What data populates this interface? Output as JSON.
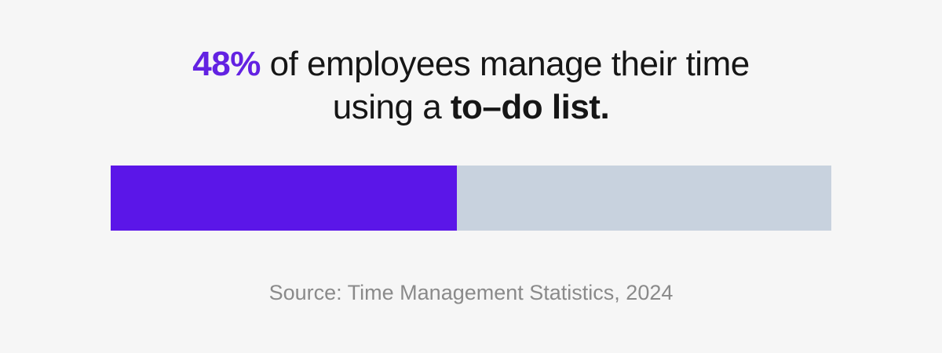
{
  "headline": {
    "percent": "48%",
    "line1_rest": " of employees manage their time",
    "line2_regular": "using a ",
    "line2_bold": "to–do list."
  },
  "source": "Source: Time Management Statistics, 2024",
  "chart_data": {
    "type": "bar",
    "categories": [
      "Employees who manage their time using a to–do list"
    ],
    "values": [
      48
    ],
    "value": 48,
    "unit": "%",
    "xlim": [
      0,
      100
    ],
    "title": "48% of employees manage their time using a to–do list.",
    "xlabel": "",
    "ylabel": "",
    "legend": "off",
    "grid": "off",
    "annotations": [
      "Source: Time Management Statistics, 2024"
    ]
  },
  "colors": {
    "background": "#f6f6f6",
    "heading": "#161616",
    "accent_text": "#6322e2",
    "accent_bar": "#5b16e8",
    "track": "#c8d2de",
    "source_text": "#8a8a8a"
  }
}
